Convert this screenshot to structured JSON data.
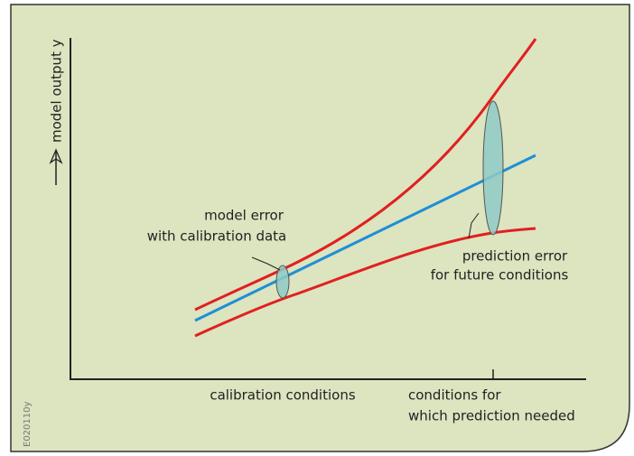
{
  "y_axis_label": "model output y",
  "annotations": [
    {
      "lines": [
        "model error",
        "with calibration data"
      ]
    },
    {
      "lines": [
        "prediction error",
        "for future conditions"
      ]
    }
  ],
  "x_labels": [
    {
      "lines": [
        "calibration conditions"
      ]
    },
    {
      "lines": [
        "conditions for",
        "which prediction needed"
      ]
    }
  ],
  "figure_code": "E020110y"
}
